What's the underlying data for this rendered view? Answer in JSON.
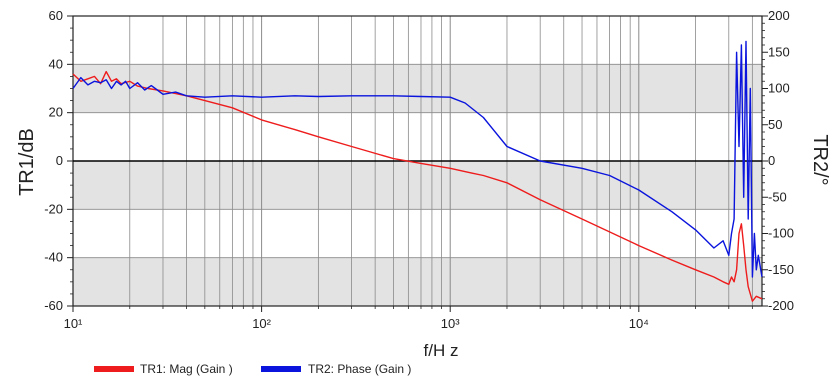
{
  "chart_data": {
    "type": "line",
    "title": "",
    "xlabel": "f/H z",
    "ylabel": "TR1/dB",
    "y2label": "TR2/°",
    "x_scale": "log",
    "xlim": [
      10,
      45000
    ],
    "ylim": [
      -60,
      60
    ],
    "y2lim": [
      -200,
      200
    ],
    "grid": true,
    "shaded_bands": true,
    "zero_line": true,
    "x_ticks": [
      {
        "value": 10,
        "label": "10¹"
      },
      {
        "value": 100,
        "label": "10²"
      },
      {
        "value": 1000,
        "label": "10³"
      },
      {
        "value": 10000,
        "label": "10⁴"
      }
    ],
    "y_ticks": [
      {
        "value": 60,
        "label": "60"
      },
      {
        "value": 40,
        "label": "40"
      },
      {
        "value": 20,
        "label": "20"
      },
      {
        "value": 0,
        "label": "0"
      },
      {
        "value": -20,
        "label": "-20"
      },
      {
        "value": -40,
        "label": "-40"
      },
      {
        "value": -60,
        "label": "-60"
      }
    ],
    "y2_ticks": [
      {
        "value": 200,
        "label": "200"
      },
      {
        "value": 150,
        "label": "150"
      },
      {
        "value": 100,
        "label": "100"
      },
      {
        "value": 50,
        "label": "50"
      },
      {
        "value": 0,
        "label": "0"
      },
      {
        "value": -50,
        "label": "-50"
      },
      {
        "value": -100,
        "label": "-100"
      },
      {
        "value": -150,
        "label": "-150"
      },
      {
        "value": -200,
        "label": "-200"
      }
    ],
    "legend_position": "bottom-left",
    "series": [
      {
        "name": "TR1: Mag (Gain )",
        "axis": "left",
        "color": "#ee1c1c",
        "x": [
          10,
          11,
          12,
          13,
          14,
          15,
          16,
          17,
          18,
          20,
          22,
          25,
          30,
          40,
          50,
          70,
          100,
          150,
          200,
          300,
          500,
          700,
          1000,
          1300,
          1500,
          2000,
          3000,
          5000,
          10000,
          15000,
          20000,
          25000,
          28000,
          30000,
          31000,
          32000,
          33000,
          34000,
          35000,
          36000,
          37000,
          38000,
          40000,
          42000,
          45000
        ],
        "y": [
          36,
          33,
          34,
          35,
          32,
          37,
          33,
          34,
          32,
          33,
          31,
          30,
          29,
          27,
          25,
          22,
          17,
          13,
          10,
          6,
          1,
          -1,
          -3,
          -5,
          -6,
          -9,
          -16,
          -24,
          -35,
          -41,
          -45,
          -48,
          -50,
          -51,
          -48,
          -50,
          -45,
          -30,
          -26,
          -35,
          -45,
          -52,
          -58,
          -56,
          -57
        ]
      },
      {
        "name": "TR2: Phase (Gain )",
        "axis": "right",
        "color": "#0a14dc",
        "x": [
          10,
          11,
          12,
          13,
          14,
          15,
          16,
          17,
          18,
          19,
          20,
          22,
          24,
          26,
          28,
          30,
          35,
          40,
          50,
          70,
          100,
          150,
          200,
          300,
          500,
          700,
          1000,
          1200,
          1500,
          2000,
          3000,
          5000,
          7000,
          10000,
          15000,
          20000,
          25000,
          28000,
          30000,
          31000,
          32000,
          33000,
          34000,
          35000,
          36000,
          37000,
          38000,
          39000,
          40000,
          41000,
          42000,
          43000,
          45000
        ],
        "y": [
          100,
          115,
          105,
          110,
          108,
          112,
          100,
          110,
          105,
          110,
          100,
          108,
          98,
          104,
          98,
          92,
          95,
          90,
          88,
          90,
          88,
          90,
          89,
          90,
          90,
          89,
          88,
          80,
          60,
          20,
          0,
          -10,
          -20,
          -40,
          -70,
          -95,
          -120,
          -110,
          -130,
          -100,
          -80,
          150,
          20,
          160,
          -50,
          165,
          -80,
          100,
          -160,
          -100,
          -150,
          -130,
          -160
        ]
      }
    ]
  },
  "legend": {
    "items": [
      {
        "label": "TR1: Mag (Gain )",
        "color": "#ee1c1c"
      },
      {
        "label": "TR2: Phase (Gain )",
        "color": "#0a14dc"
      }
    ]
  },
  "colors": {
    "band": "#e3e3e3",
    "grid": "#8a8a8a",
    "axis": "#222222",
    "zero_line": "#000000"
  }
}
